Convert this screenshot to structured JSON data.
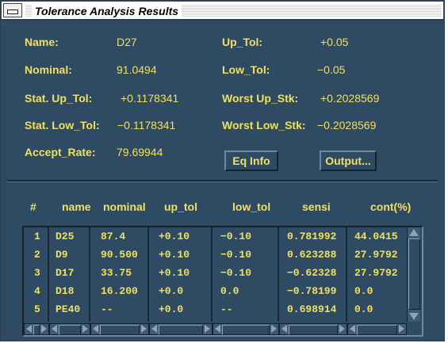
{
  "window": {
    "title": "Tolerance Analysis Results"
  },
  "fields": {
    "name_label": "Name:",
    "name_value": "D27",
    "nominal_label": "Nominal:",
    "nominal_value": "91.0494",
    "stat_up_label": "Stat. Up_Tol:",
    "stat_up_value": "+0.1178341",
    "stat_low_label": "Stat. Low_Tol:",
    "stat_low_value": "−0.1178341",
    "accept_label": "Accept_Rate:",
    "accept_value": "79.69944",
    "up_tol_label": "Up_Tol:",
    "up_tol_value": "+0.05",
    "low_tol_label": "Low_Tol:",
    "low_tol_value": "−0.05",
    "worst_up_label": "Worst Up_Stk:",
    "worst_up_value": "+0.2028569",
    "worst_low_label": "Worst Low_Stk:",
    "worst_low_value": "−0.2028569"
  },
  "buttons": {
    "eq_info": "Eq  Info",
    "output": "Output..."
  },
  "table": {
    "headers": [
      "#",
      "name",
      "nominal",
      "up_tol",
      "low_tol",
      "sensi",
      "cont(%)"
    ],
    "rows": [
      [
        "1",
        "D25",
        "87.4",
        "+0.10",
        "−0.10",
        "0.781992",
        "44.0415"
      ],
      [
        "2",
        "D9",
        "90.500",
        "+0.10",
        "−0.10",
        "0.623288",
        "27.9792"
      ],
      [
        "3",
        "D17",
        "33.75",
        "+0.10",
        "−0.10",
        "−0.62328",
        "27.9792"
      ],
      [
        "4",
        "D18",
        "16.200",
        "+0.0",
        "0.0",
        "−0.78199",
        "0.0"
      ],
      [
        "5",
        "PE40",
        "--",
        "+0.0",
        "--",
        "0.698914",
        "0.0"
      ]
    ]
  },
  "colors": {
    "background": "#2f4b63",
    "text": "#f0e060"
  },
  "icons": {
    "window_menu": "window-menu-icon",
    "scroll_left": "arrow-left-icon",
    "scroll_right": "arrow-right-icon",
    "scroll_up": "arrow-up-icon",
    "scroll_down": "arrow-down-icon"
  }
}
